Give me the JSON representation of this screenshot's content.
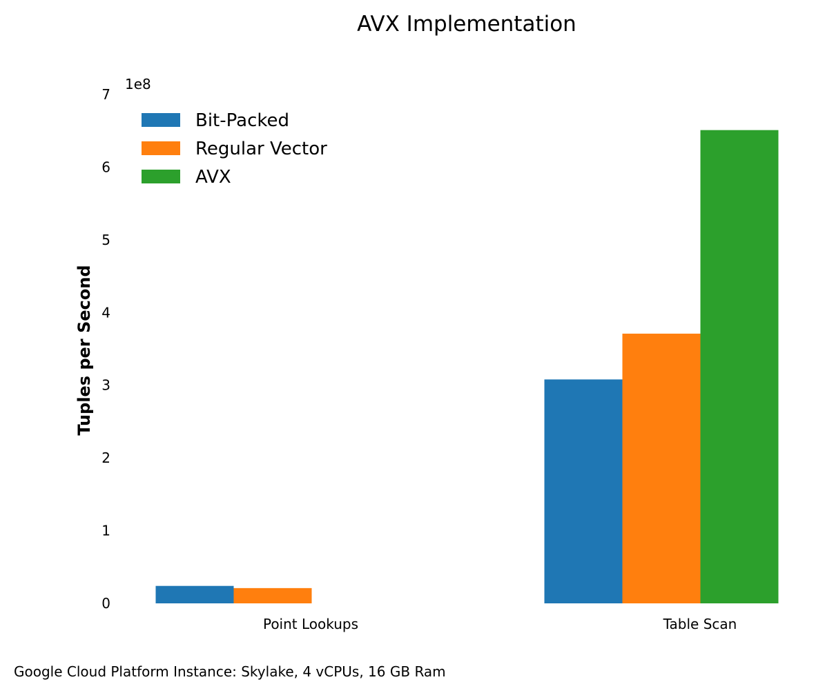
{
  "chart_data": {
    "type": "bar",
    "title": "AVX Implementation",
    "xlabel": "",
    "ylabel": "Tuples per Second",
    "y_multiplier_label": "1e8",
    "ylim": [
      0,
      7
    ],
    "yticks": [
      "0",
      "1",
      "2",
      "3",
      "4",
      "5",
      "6",
      "7"
    ],
    "categories": [
      "Point Lookups",
      "Table Scan"
    ],
    "series": [
      {
        "name": "Bit-Packed",
        "color": "#1f77b4",
        "values": [
          0.24,
          3.08
        ]
      },
      {
        "name": "Regular Vector",
        "color": "#ff7f0e",
        "values": [
          0.21,
          3.71
        ]
      },
      {
        "name": "AVX",
        "color": "#2ca02c",
        "values": [
          0,
          6.51
        ]
      }
    ],
    "legend_position": "top-left",
    "grid": false
  },
  "footer": "Google Cloud Platform Instance: Skylake, 4 vCPUs, 16 GB Ram"
}
